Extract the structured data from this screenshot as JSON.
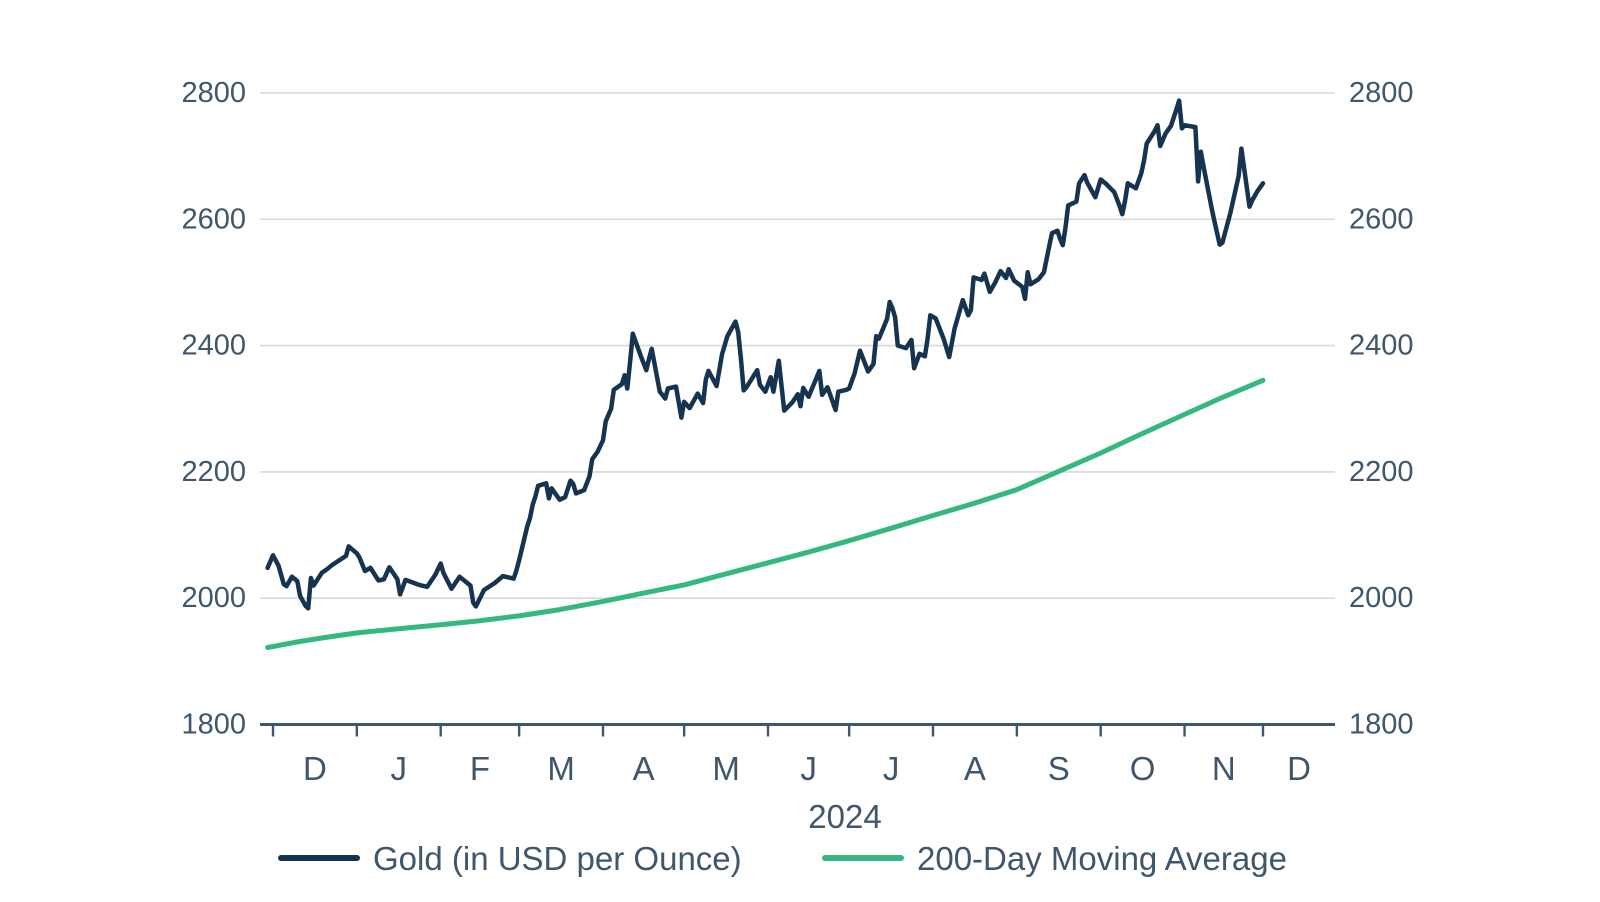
{
  "chart_data": {
    "type": "line",
    "title": "",
    "grid": true,
    "legend_position": "bottom",
    "x_axis": {
      "year_label": "2024",
      "month_labels": [
        "D",
        "J",
        "F",
        "M",
        "A",
        "M",
        "J",
        "J",
        "A",
        "S",
        "O",
        "N",
        "D"
      ],
      "month_tick_days": [
        0,
        31,
        62,
        91,
        122,
        152,
        183,
        213,
        244,
        275,
        306,
        337,
        366
      ],
      "x_unit": "days from first December tick",
      "range_days": [
        -5,
        392
      ]
    },
    "y_axis": {
      "ticks": [
        1800,
        2000,
        2200,
        2400,
        2600,
        2800
      ],
      "tick_labels": [
        "1800",
        "2000",
        "2200",
        "2400",
        "2600",
        "2800"
      ],
      "range": [
        1800,
        2800
      ],
      "sides": "both"
    },
    "series": [
      {
        "id": "gold",
        "name": "Gold (in USD per Ounce)",
        "color": "#16334f",
        "points": [
          [
            -2,
            2048
          ],
          [
            0,
            2068
          ],
          [
            2,
            2052
          ],
          [
            4,
            2022
          ],
          [
            5,
            2019
          ],
          [
            7,
            2034
          ],
          [
            9,
            2027
          ],
          [
            10,
            2004
          ],
          [
            12,
            1988
          ],
          [
            13,
            1984
          ],
          [
            14,
            2032
          ],
          [
            15,
            2020
          ],
          [
            18,
            2040
          ],
          [
            20,
            2046
          ],
          [
            22,
            2053
          ],
          [
            27,
            2067
          ],
          [
            28,
            2082
          ],
          [
            31,
            2071
          ],
          [
            32,
            2064
          ],
          [
            34,
            2043
          ],
          [
            36,
            2048
          ],
          [
            39,
            2028
          ],
          [
            41,
            2030
          ],
          [
            43,
            2049
          ],
          [
            46,
            2030
          ],
          [
            47,
            2006
          ],
          [
            49,
            2029
          ],
          [
            54,
            2021
          ],
          [
            57,
            2018
          ],
          [
            60,
            2037
          ],
          [
            62,
            2055
          ],
          [
            63,
            2040
          ],
          [
            66,
            2015
          ],
          [
            69,
            2034
          ],
          [
            73,
            2020
          ],
          [
            74,
            1993
          ],
          [
            75,
            1987
          ],
          [
            78,
            2013
          ],
          [
            82,
            2024
          ],
          [
            85,
            2035
          ],
          [
            89,
            2031
          ],
          [
            90,
            2044
          ],
          [
            91,
            2060
          ],
          [
            94,
            2114
          ],
          [
            95,
            2127
          ],
          [
            96,
            2148
          ],
          [
            97,
            2161
          ],
          [
            98,
            2178
          ],
          [
            101,
            2182
          ],
          [
            102,
            2158
          ],
          [
            103,
            2174
          ],
          [
            105,
            2162
          ],
          [
            106,
            2156
          ],
          [
            108,
            2160
          ],
          [
            110,
            2186
          ],
          [
            111,
            2181
          ],
          [
            112,
            2166
          ],
          [
            115,
            2171
          ],
          [
            117,
            2193
          ],
          [
            118,
            2220
          ],
          [
            120,
            2232
          ],
          [
            122,
            2250
          ],
          [
            123,
            2280
          ],
          [
            125,
            2300
          ],
          [
            126,
            2330
          ],
          [
            129,
            2339
          ],
          [
            130,
            2353
          ],
          [
            131,
            2332
          ],
          [
            132,
            2373
          ],
          [
            133,
            2419
          ],
          [
            136,
            2383
          ],
          [
            138,
            2361
          ],
          [
            139,
            2379
          ],
          [
            140,
            2395
          ],
          [
            143,
            2327
          ],
          [
            144,
            2322
          ],
          [
            145,
            2316
          ],
          [
            146,
            2332
          ],
          [
            149,
            2335
          ],
          [
            151,
            2286
          ],
          [
            152,
            2311
          ],
          [
            154,
            2301
          ],
          [
            157,
            2324
          ],
          [
            159,
            2309
          ],
          [
            160,
            2346
          ],
          [
            161,
            2360
          ],
          [
            164,
            2336
          ],
          [
            166,
            2386
          ],
          [
            168,
            2415
          ],
          [
            171,
            2438
          ],
          [
            172,
            2421
          ],
          [
            173,
            2378
          ],
          [
            174,
            2329
          ],
          [
            175,
            2334
          ],
          [
            179,
            2361
          ],
          [
            180,
            2338
          ],
          [
            182,
            2327
          ],
          [
            184,
            2350
          ],
          [
            185,
            2327
          ],
          [
            187,
            2376
          ],
          [
            189,
            2297
          ],
          [
            192,
            2310
          ],
          [
            194,
            2323
          ],
          [
            195,
            2304
          ],
          [
            196,
            2333
          ],
          [
            198,
            2319
          ],
          [
            202,
            2360
          ],
          [
            203,
            2322
          ],
          [
            205,
            2334
          ],
          [
            208,
            2298
          ],
          [
            209,
            2327
          ],
          [
            212,
            2330
          ],
          [
            213,
            2332
          ],
          [
            215,
            2356
          ],
          [
            217,
            2392
          ],
          [
            220,
            2359
          ],
          [
            222,
            2371
          ],
          [
            223,
            2415
          ],
          [
            224,
            2411
          ],
          [
            227,
            2442
          ],
          [
            228,
            2469
          ],
          [
            229,
            2459
          ],
          [
            230,
            2445
          ],
          [
            231,
            2400
          ],
          [
            234,
            2396
          ],
          [
            236,
            2409
          ],
          [
            237,
            2364
          ],
          [
            239,
            2387
          ],
          [
            241,
            2383
          ],
          [
            242,
            2411
          ],
          [
            243,
            2448
          ],
          [
            245,
            2443
          ],
          [
            248,
            2410
          ],
          [
            250,
            2382
          ],
          [
            252,
            2427
          ],
          [
            255,
            2472
          ],
          [
            257,
            2448
          ],
          [
            258,
            2456
          ],
          [
            259,
            2508
          ],
          [
            262,
            2504
          ],
          [
            263,
            2514
          ],
          [
            265,
            2485
          ],
          [
            267,
            2500
          ],
          [
            269,
            2518
          ],
          [
            271,
            2507
          ],
          [
            272,
            2521
          ],
          [
            274,
            2503
          ],
          [
            277,
            2493
          ],
          [
            278,
            2474
          ],
          [
            279,
            2516
          ],
          [
            280,
            2497
          ],
          [
            283,
            2505
          ],
          [
            285,
            2516
          ],
          [
            287,
            2558
          ],
          [
            288,
            2578
          ],
          [
            290,
            2582
          ],
          [
            291,
            2569
          ],
          [
            292,
            2559
          ],
          [
            293,
            2587
          ],
          [
            294,
            2622
          ],
          [
            297,
            2628
          ],
          [
            298,
            2657
          ],
          [
            300,
            2670
          ],
          [
            301,
            2658
          ],
          [
            304,
            2635
          ],
          [
            306,
            2663
          ],
          [
            308,
            2656
          ],
          [
            311,
            2643
          ],
          [
            313,
            2621
          ],
          [
            314,
            2608
          ],
          [
            315,
            2629
          ],
          [
            316,
            2657
          ],
          [
            319,
            2649
          ],
          [
            321,
            2673
          ],
          [
            322,
            2693
          ],
          [
            323,
            2720
          ],
          [
            326,
            2740
          ],
          [
            327,
            2749
          ],
          [
            328,
            2716
          ],
          [
            330,
            2736
          ],
          [
            332,
            2748
          ],
          [
            334,
            2774
          ],
          [
            335,
            2788
          ],
          [
            336,
            2744
          ],
          [
            337,
            2749
          ],
          [
            341,
            2746
          ],
          [
            342,
            2660
          ],
          [
            343,
            2707
          ],
          [
            344,
            2684
          ],
          [
            347,
            2618
          ],
          [
            348,
            2598
          ],
          [
            350,
            2560
          ],
          [
            351,
            2563
          ],
          [
            354,
            2611
          ],
          [
            356,
            2650
          ],
          [
            357,
            2669
          ],
          [
            358,
            2712
          ],
          [
            361,
            2620
          ],
          [
            362,
            2630
          ],
          [
            364,
            2645
          ],
          [
            366,
            2657
          ]
        ]
      },
      {
        "id": "moving-average",
        "name": "200-Day Moving Average",
        "color": "#35b87f",
        "points": [
          [
            -2,
            1922
          ],
          [
            8,
            1930
          ],
          [
            18,
            1937
          ],
          [
            31,
            1945
          ],
          [
            45,
            1951
          ],
          [
            62,
            1958
          ],
          [
            76,
            1964
          ],
          [
            91,
            1972
          ],
          [
            106,
            1982
          ],
          [
            122,
            1995
          ],
          [
            137,
            2008
          ],
          [
            152,
            2021
          ],
          [
            167,
            2038
          ],
          [
            183,
            2056
          ],
          [
            198,
            2073
          ],
          [
            213,
            2091
          ],
          [
            228,
            2110
          ],
          [
            244,
            2131
          ],
          [
            259,
            2150
          ],
          [
            275,
            2172
          ],
          [
            290,
            2200
          ],
          [
            306,
            2230
          ],
          [
            321,
            2260
          ],
          [
            337,
            2291
          ],
          [
            351,
            2318
          ],
          [
            366,
            2345
          ]
        ]
      }
    ]
  },
  "colors": {
    "background": "#ffffff",
    "gridline": "#d9d9d9",
    "axis": "#3e566e",
    "label_text": "#3f566c",
    "gold_line": "#16334f",
    "moving_average_line": "#35b87f"
  },
  "legend": {
    "items": [
      {
        "label": "Gold (in USD per Ounce)"
      },
      {
        "label": "200-Day Moving Average"
      }
    ]
  }
}
